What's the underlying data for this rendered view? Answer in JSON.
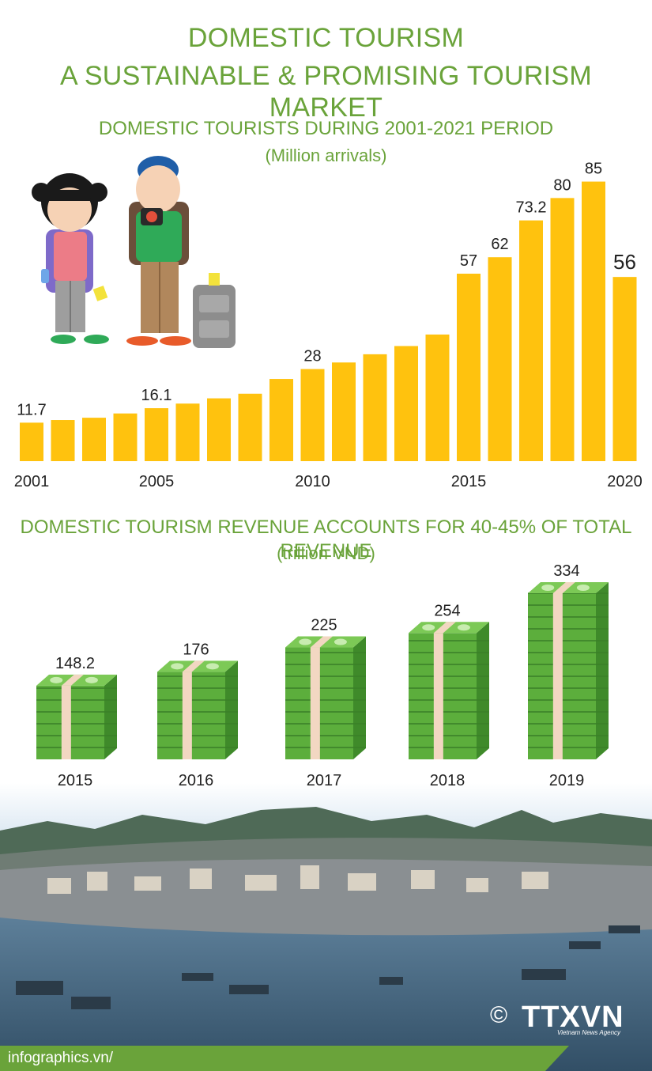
{
  "header": {
    "title_line1": "DOMESTIC TOURISM",
    "title_line2": "A SUSTAINABLE & PROMISING TOURISM MARKET"
  },
  "colors": {
    "accent_green": "#6aa33a",
    "bar_yellow": "#ffc20e",
    "money_green": "#5cae3c",
    "footer_green": "#6aa33a"
  },
  "chart_data": [
    {
      "type": "bar",
      "title": "DOMESTIC TOURISTS DURING 2001-2021 PERIOD",
      "subtitle": "(Million arrivals)",
      "categories": [
        "2001",
        "2002",
        "2003",
        "2004",
        "2005",
        "2006",
        "2007",
        "2008",
        "2009",
        "2010",
        "2011",
        "2012",
        "2013",
        "2014",
        "2015",
        "2016",
        "2017",
        "2018",
        "2019",
        "2020"
      ],
      "values": [
        11.7,
        12.5,
        13.2,
        14.5,
        16.1,
        17.5,
        19.1,
        20.5,
        25,
        28,
        30,
        32.5,
        35,
        38.5,
        57,
        62,
        73.2,
        80,
        85,
        56
      ],
      "value_labels": {
        "2001": "11.7",
        "2005": "16.1",
        "2010": "28",
        "2015": "57",
        "2016": "62",
        "2017": "73.2",
        "2018": "80",
        "2019": "85",
        "2020": "56"
      },
      "tick_labels": [
        "2001",
        "2005",
        "2010",
        "2015",
        "2020"
      ],
      "ylim": [
        0,
        90
      ],
      "grid": false,
      "legend": "none"
    },
    {
      "type": "bar",
      "title": "DOMESTIC TOURISM REVENUE ACCOUNTS FOR 40-45% OF TOTAL REVENUE",
      "subtitle": "(trillion VND)",
      "categories": [
        "2015",
        "2016",
        "2017",
        "2018",
        "2019"
      ],
      "values": [
        148.2,
        176,
        225,
        254,
        334
      ],
      "value_labels": [
        "148.2",
        "176",
        "225",
        "254",
        "334"
      ],
      "grid": false,
      "legend": "none"
    }
  ],
  "icons": {
    "illustration": "tourist-couple-illustration",
    "money": "money-stack-icon",
    "copyright": "copyright-icon"
  },
  "footer": {
    "copyright_symbol": "©",
    "logo_text": "TTXVN",
    "logo_subtext": "Vietnam News Agency",
    "site": "infographics.vn/"
  }
}
